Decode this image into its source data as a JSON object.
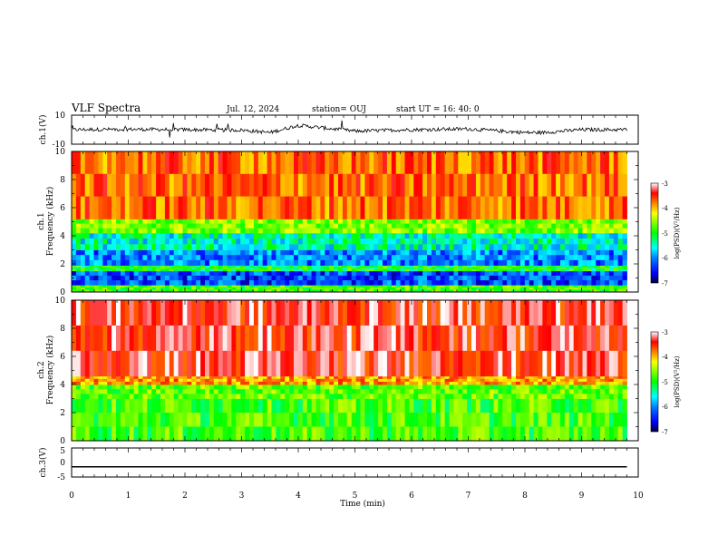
{
  "header": {
    "title": "VLF Spectra",
    "date": "Jul. 12, 2024",
    "station": "station= OUJ",
    "start_ut": "start UT = 16: 40: 0"
  },
  "colors": {
    "frame": "#000000",
    "colormap": [
      "#000040",
      "#0000ff",
      "#0080ff",
      "#00ffff",
      "#00ff00",
      "#80ff00",
      "#ffff00",
      "#ff8000",
      "#ff0000",
      "#ffffff"
    ]
  },
  "chart_data": [
    {
      "type": "line",
      "panel": "ch1-waveform",
      "ylabel": "ch.1(V)",
      "ylim": [
        -10,
        10
      ],
      "y_ticks": [
        "10",
        "-10"
      ],
      "xlim": [
        0,
        10
      ],
      "series": [
        {
          "x": [
            0,
            1,
            2,
            3,
            3.5,
            4,
            5,
            6,
            7,
            8,
            8.3,
            9,
            9.8
          ],
          "y": [
            0,
            0.3,
            0,
            -0.3,
            -2,
            3,
            -1,
            0,
            0.5,
            -2,
            -2,
            0,
            0
          ]
        }
      ]
    },
    {
      "type": "heatmap",
      "panel": "ch1-spectrogram",
      "ylabel": "ch.1",
      "ylabel2": "Frequency (kHz)",
      "ylim": [
        0,
        10
      ],
      "y_ticks": [
        "0",
        "2",
        "4",
        "6",
        "8",
        "10"
      ],
      "xlim": [
        0,
        10
      ],
      "color_scale": {
        "label": "log(PSD)(V²/Hz)",
        "range": [
          -7,
          -3
        ],
        "ticks": [
          "-3",
          "-4",
          "-5",
          "-6",
          "-7"
        ]
      },
      "bands_kHz": [
        {
          "from": 0,
          "to": 0.5,
          "level": -5.0
        },
        {
          "from": 0.5,
          "to": 1.5,
          "level": -6.3
        },
        {
          "from": 1.5,
          "to": 1.9,
          "level": -5.2
        },
        {
          "from": 1.9,
          "to": 3.0,
          "level": -6.1
        },
        {
          "from": 3.0,
          "to": 4.2,
          "level": -5.6
        },
        {
          "from": 4.2,
          "to": 5.2,
          "level": -4.8
        },
        {
          "from": 5.2,
          "to": 10,
          "level": -3.8
        }
      ]
    },
    {
      "type": "heatmap",
      "panel": "ch2-spectrogram",
      "ylabel": "ch.2",
      "ylabel2": "Frequency (kHz)",
      "ylim": [
        0,
        10
      ],
      "y_ticks": [
        "0",
        "2",
        "4",
        "6",
        "8",
        "10"
      ],
      "xlim": [
        0,
        10
      ],
      "color_scale": {
        "label": "log(PSD)(V²/Hz)",
        "range": [
          -7,
          -3
        ],
        "ticks": [
          "-3",
          "-4",
          "-5",
          "-6",
          "-7"
        ]
      },
      "bands_kHz": [
        {
          "from": 0,
          "to": 3.0,
          "level": -5.0
        },
        {
          "from": 3.0,
          "to": 4.0,
          "level": -4.9
        },
        {
          "from": 4.0,
          "to": 4.6,
          "level": -4.0
        },
        {
          "from": 4.6,
          "to": 10,
          "level": -3.4
        }
      ]
    },
    {
      "type": "line",
      "panel": "ch3-waveform",
      "ylabel": "ch.3(V)",
      "ylim": [
        -5,
        5
      ],
      "y_ticks": [
        "5",
        "0",
        "-5"
      ],
      "xlim": [
        0,
        10
      ],
      "xlabel": "Time (min)",
      "x_ticks": [
        "0",
        "1",
        "2",
        "3",
        "4",
        "5",
        "6",
        "7",
        "8",
        "9",
        "10"
      ],
      "series": [
        {
          "x": [
            0,
            9.8
          ],
          "y": [
            -1.5,
            -1.5
          ]
        }
      ]
    }
  ]
}
